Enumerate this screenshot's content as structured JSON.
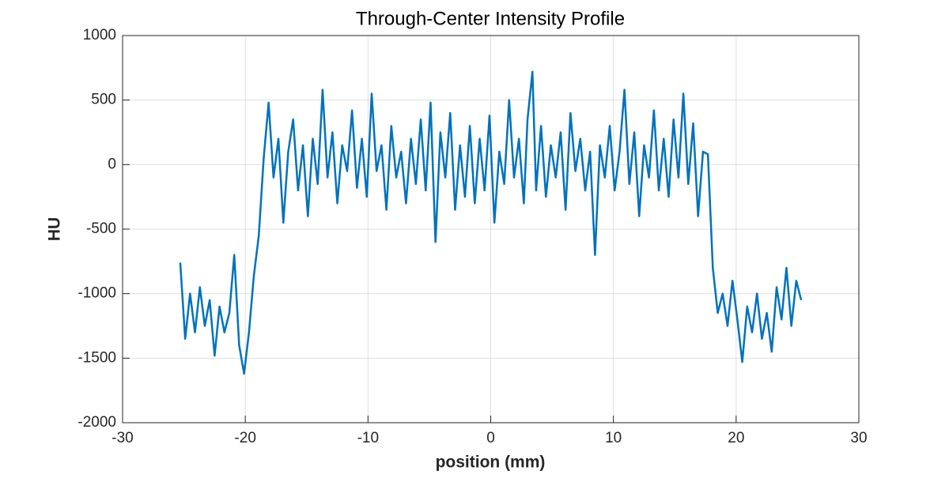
{
  "chart_data": {
    "type": "line",
    "title": "Through-Center Intensity Profile",
    "x_label": "position (mm)",
    "y_label": "HU",
    "x": [
      -25.3,
      -24.9,
      -24.5,
      -24.1,
      -23.7,
      -23.3,
      -22.9,
      -22.5,
      -22.1,
      -21.7,
      -21.3,
      -20.9,
      -20.5,
      -20.1,
      -19.7,
      -19.3,
      -18.9,
      -18.5,
      -18.1,
      -17.7,
      -17.3,
      -16.9,
      -16.5,
      -16.1,
      -15.7,
      -15.3,
      -14.9,
      -14.5,
      -14.1,
      -13.7,
      -13.3,
      -12.9,
      -12.5,
      -12.1,
      -11.7,
      -11.3,
      -10.9,
      -10.5,
      -10.1,
      -9.7,
      -9.3,
      -8.9,
      -8.5,
      -8.1,
      -7.7,
      -7.3,
      -6.9,
      -6.5,
      -6.1,
      -5.7,
      -5.3,
      -4.9,
      -4.5,
      -4.1,
      -3.7,
      -3.3,
      -2.9,
      -2.5,
      -2.1,
      -1.7,
      -1.3,
      -0.9,
      -0.5,
      -0.1,
      0.3,
      0.7,
      1.1,
      1.5,
      1.9,
      2.3,
      2.7,
      3.0,
      3.4,
      3.7,
      4.1,
      4.5,
      4.9,
      5.3,
      5.7,
      6.1,
      6.5,
      6.9,
      7.3,
      7.7,
      8.1,
      8.5,
      8.9,
      9.3,
      9.7,
      10.1,
      10.5,
      10.9,
      11.3,
      11.7,
      12.1,
      12.5,
      12.9,
      13.3,
      13.7,
      14.1,
      14.5,
      14.9,
      15.3,
      15.7,
      16.1,
      16.5,
      16.9,
      17.3,
      17.7,
      18.1,
      18.5,
      18.9,
      19.3,
      19.7,
      20.1,
      20.5,
      20.9,
      21.3,
      21.7,
      22.1,
      22.5,
      22.9,
      23.3,
      23.7,
      24.1,
      24.5,
      24.9,
      25.3
    ],
    "series": [
      {
        "name": "HU",
        "color": "#0072bd",
        "values": [
          -760,
          -1350,
          -1000,
          -1300,
          -950,
          -1250,
          -1050,
          -1480,
          -1100,
          -1300,
          -1150,
          -700,
          -1400,
          -1620,
          -1300,
          -860,
          -550,
          50,
          480,
          -100,
          200,
          -450,
          100,
          350,
          -200,
          150,
          -400,
          200,
          -150,
          580,
          -100,
          250,
          -300,
          150,
          -50,
          420,
          -180,
          200,
          -250,
          550,
          -50,
          150,
          -350,
          300,
          -100,
          100,
          -300,
          200,
          -150,
          350,
          -200,
          480,
          -600,
          250,
          -100,
          400,
          -350,
          150,
          -250,
          300,
          -300,
          200,
          -200,
          380,
          -450,
          100,
          -150,
          500,
          -100,
          200,
          -300,
          350,
          720,
          -200,
          300,
          -250,
          150,
          -100,
          250,
          -350,
          400,
          -50,
          200,
          -200,
          100,
          -700,
          150,
          -100,
          300,
          -200,
          100,
          580,
          -150,
          250,
          -400,
          150,
          -100,
          420,
          -200,
          200,
          -250,
          350,
          -100,
          550,
          -150,
          320,
          -400,
          100,
          80,
          -800,
          -1150,
          -1000,
          -1250,
          -900,
          -1200,
          -1530,
          -1100,
          -1300,
          -1000,
          -1350,
          -1150,
          -1450,
          -950,
          -1200,
          -800,
          -1250,
          -900,
          -1050
        ]
      }
    ],
    "xlim": [
      -30,
      30
    ],
    "xticks": [
      -30,
      -20,
      -10,
      0,
      10,
      20,
      30
    ],
    "ylim": [
      -2000,
      1000
    ],
    "yticks": [
      -2000,
      -1500,
      -1000,
      -500,
      0,
      500,
      1000
    ],
    "grid": true
  }
}
